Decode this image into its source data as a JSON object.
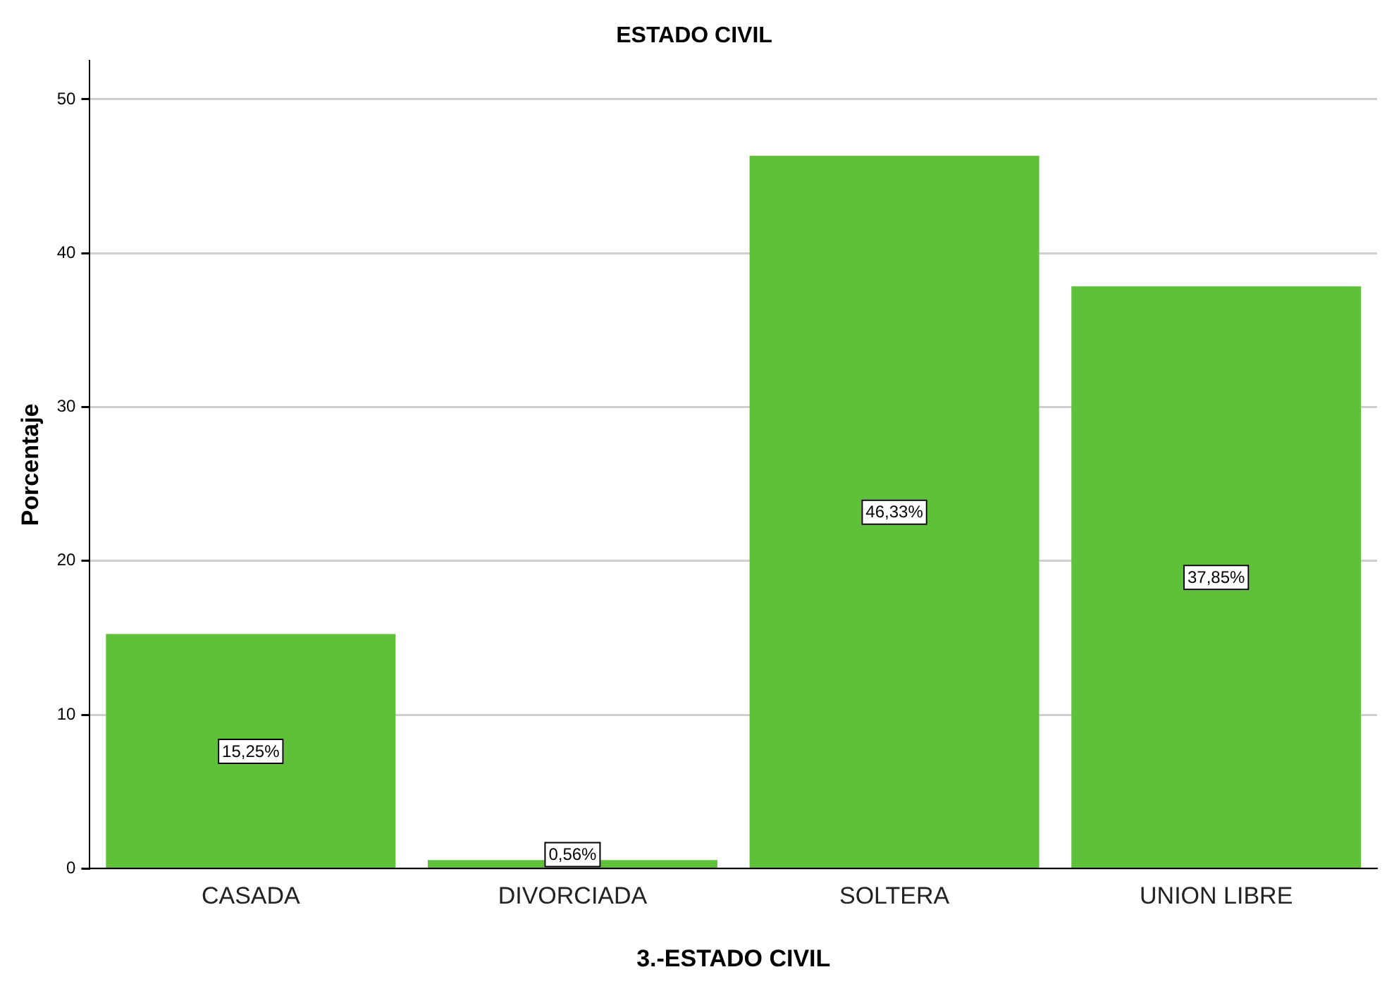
{
  "chart_data": {
    "type": "bar",
    "title": "ESTADO CIVIL",
    "xlabel": "3.-ESTADO CIVIL",
    "ylabel": "Porcentaje",
    "categories": [
      "CASADA",
      "DIVORCIADA",
      "SOLTERA",
      "UNION LIBRE"
    ],
    "values": [
      15.25,
      0.56,
      46.33,
      37.85
    ],
    "value_labels": [
      "15,25%",
      "0,56%",
      "46,33%",
      "37,85%"
    ],
    "color": "#5fc13a",
    "ylim": [
      0,
      52.5
    ],
    "yticks": [
      0,
      10,
      20,
      30,
      40,
      50
    ],
    "grid": "y"
  }
}
